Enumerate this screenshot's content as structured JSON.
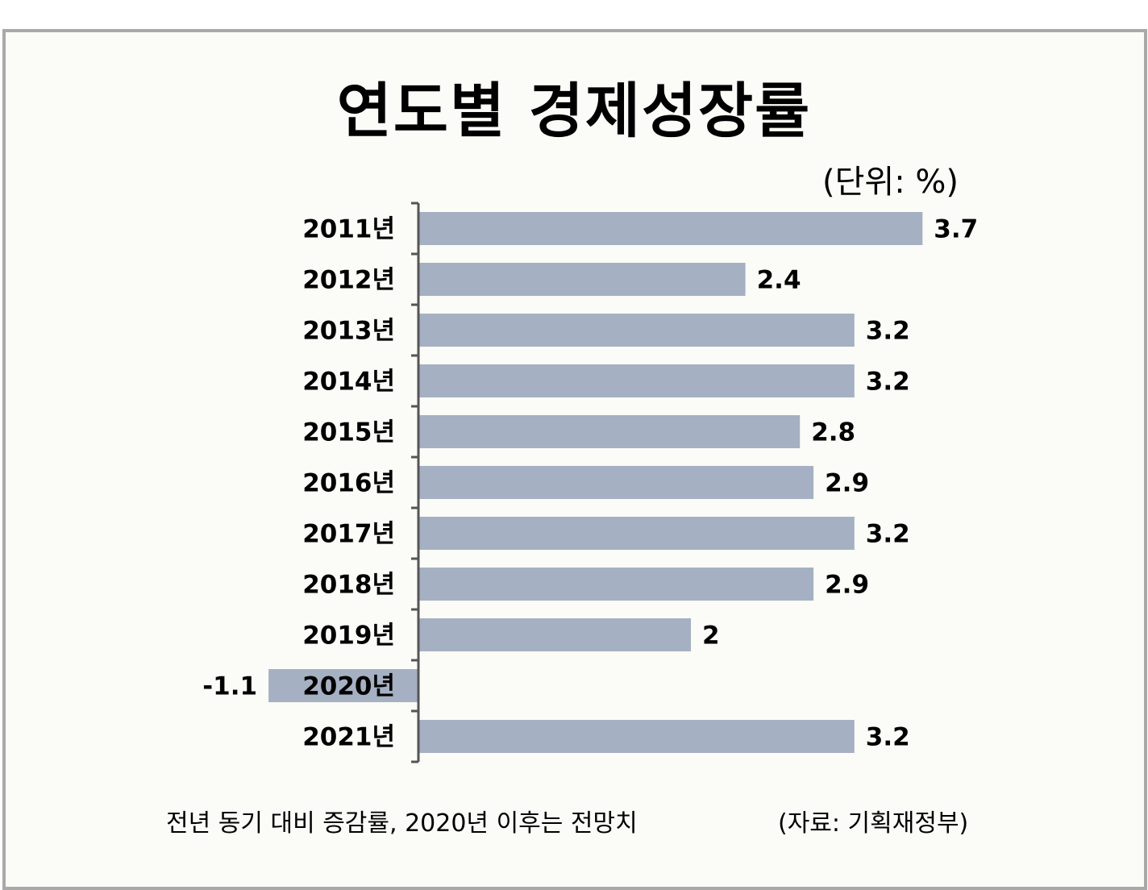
{
  "title": "연도별 경제성장률",
  "unit": "(단위: %)",
  "footnote": "전년 동기 대비 증감률, 2020년 이후는 전망치",
  "source": "(자료: 기획재정부)",
  "colors": {
    "bar": "#a5b0c3",
    "axis": "#555555",
    "text": "#000000",
    "background": "#fbfbf7",
    "border": "#a9a9a9"
  },
  "chart_data": {
    "type": "bar",
    "orientation": "horizontal",
    "title": "연도별 경제성장률",
    "unit": "%",
    "categories": [
      "2011년",
      "2012년",
      "2013년",
      "2014년",
      "2015년",
      "2016년",
      "2017년",
      "2018년",
      "2019년",
      "2020년",
      "2021년"
    ],
    "values": [
      3.7,
      2.4,
      3.2,
      3.2,
      2.8,
      2.9,
      3.2,
      2.9,
      2,
      -1.1,
      3.2
    ],
    "value_labels": [
      "3.7",
      "2.4",
      "3.2",
      "3.2",
      "2.8",
      "2.9",
      "3.2",
      "2.9",
      "2",
      "-1.1",
      "3.2"
    ],
    "xlim": [
      -1.1,
      3.7
    ],
    "grid": false,
    "legend": "none"
  }
}
